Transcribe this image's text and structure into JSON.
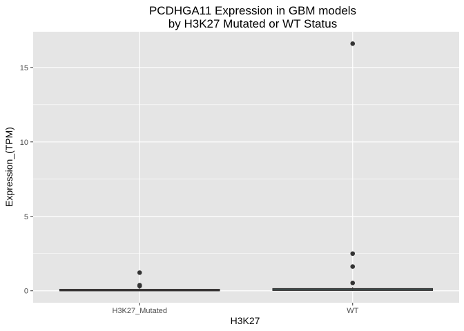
{
  "chart_data": {
    "type": "box",
    "title_lines": [
      "PCDHGA11 Expression in GBM models",
      "by H3K27 Mutated or WT Status"
    ],
    "xlabel": "H3K27",
    "ylabel": "Expression_(TPM)",
    "categories": [
      "H3K27_Mutated",
      "WT"
    ],
    "ylim": [
      -0.8,
      17.4
    ],
    "yticks": [
      0,
      5,
      10,
      15
    ],
    "ytick_labels": [
      "0",
      "5",
      "10",
      "15"
    ],
    "grid": true,
    "legend": "none",
    "boxes": [
      {
        "category": "H3K27_Mutated",
        "q1": 0.0,
        "median": 0.02,
        "q3": 0.1,
        "whisker_low": 0.0,
        "whisker_high": 0.2,
        "outliers": [
          1.22,
          0.38,
          0.32
        ],
        "fill": "#c77a79"
      },
      {
        "category": "WT",
        "q1": 0.02,
        "median": 0.06,
        "q3": 0.15,
        "whisker_low": 0.0,
        "whisker_high": 0.25,
        "outliers": [
          16.6,
          2.5,
          1.63,
          0.53
        ],
        "fill": "#5a8f8c"
      }
    ],
    "colors": {
      "panel": "#e5e5e5",
      "grid": "#ffffff",
      "point": "#333333",
      "box_line": "#333333"
    }
  }
}
